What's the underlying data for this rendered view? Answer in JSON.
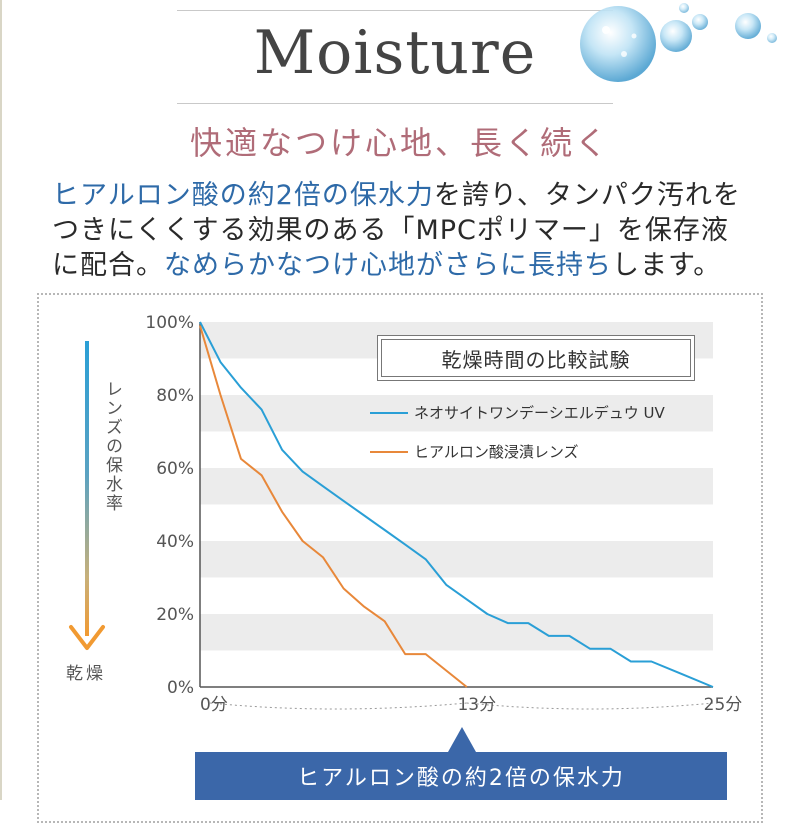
{
  "header": {
    "title": "Moisture",
    "subtitle": "快適なつけ心地、長く続く"
  },
  "description": {
    "line1_highlight": "ヒアルロン酸の約2倍の保水力",
    "line1_rest": "を誇り、タンパク汚れを",
    "line2": "つきにくくする効果のある「MPCポリマー」を保存液",
    "line3_prefix": "に配合。",
    "line3_highlight": "なめらかなつけ心地がさらに長持ち",
    "line3_suffix": "します。"
  },
  "y_axis_side": {
    "label": "レンズの保水率",
    "dry_label": "乾燥"
  },
  "badge": {
    "text": "ヒアルロン酸の約2倍の保水力"
  },
  "colors": {
    "series_blue": "#2a9fd6",
    "series_orange": "#e8883a",
    "accent_pink": "#b06c78",
    "highlight_blue": "#2e6aa8",
    "badge_bg": "#3b67a9"
  },
  "chart_data": {
    "type": "line",
    "title": "乾燥時間の比較試験",
    "ylim": [
      0,
      100
    ],
    "xlim": [
      0,
      25
    ],
    "y_ticks": [
      0,
      20,
      40,
      60,
      80,
      100
    ],
    "y_tick_labels": [
      "0%",
      "20%",
      "40%",
      "60%",
      "80%",
      "100%"
    ],
    "x_ticks": [
      0,
      13,
      25
    ],
    "x_tick_labels": [
      "0分",
      "13分",
      "25分"
    ],
    "legend_position": "top-right",
    "series": [
      {
        "name": "ネオサイトワンデーシエルデュウ UV",
        "color": "#2a9fd6",
        "points": [
          [
            0,
            100
          ],
          [
            1,
            89
          ],
          [
            2,
            82
          ],
          [
            3,
            76
          ],
          [
            4,
            65
          ],
          [
            5,
            59
          ],
          [
            6,
            55
          ],
          [
            7,
            51
          ],
          [
            8,
            47
          ],
          [
            9,
            43
          ],
          [
            10,
            39
          ],
          [
            11,
            35
          ],
          [
            12,
            28
          ],
          [
            13,
            24
          ],
          [
            14,
            20
          ],
          [
            15,
            17.5
          ],
          [
            16,
            17.5
          ],
          [
            17,
            14
          ],
          [
            18,
            14
          ],
          [
            19,
            10.5
          ],
          [
            20,
            10.5
          ],
          [
            21,
            7
          ],
          [
            22,
            7
          ],
          [
            23.5,
            3.5
          ],
          [
            25,
            0
          ]
        ]
      },
      {
        "name": "ヒアルロン酸浸漬レンズ",
        "color": "#e8883a",
        "points": [
          [
            0,
            99
          ],
          [
            1,
            80
          ],
          [
            2,
            62.5
          ],
          [
            3,
            58
          ],
          [
            4,
            48
          ],
          [
            5,
            40
          ],
          [
            6,
            35.5
          ],
          [
            7,
            27
          ],
          [
            8,
            22
          ],
          [
            9,
            18
          ],
          [
            10,
            9
          ],
          [
            11,
            9
          ],
          [
            13,
            0
          ]
        ]
      }
    ]
  }
}
